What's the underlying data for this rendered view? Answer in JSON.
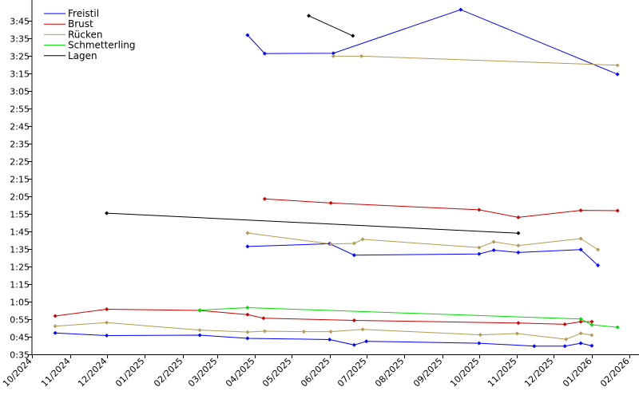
{
  "chart_data": {
    "type": "line",
    "title": "",
    "xlabel": "",
    "ylabel": "",
    "x_type": "date",
    "xlim": [
      "2024-10-01",
      "2026-02-02"
    ],
    "ylim_seconds": [
      35,
      235
    ],
    "x_ticks": [
      {
        "date": "2024-10-01",
        "label": "10/2024"
      },
      {
        "date": "2024-11-01",
        "label": "11/2024"
      },
      {
        "date": "2024-12-01",
        "label": "12/2024"
      },
      {
        "date": "2025-01-01",
        "label": "01/2025"
      },
      {
        "date": "2025-02-01",
        "label": "02/2025"
      },
      {
        "date": "2025-03-01",
        "label": "03/2025"
      },
      {
        "date": "2025-04-01",
        "label": "04/2025"
      },
      {
        "date": "2025-05-01",
        "label": "05/2025"
      },
      {
        "date": "2025-06-01",
        "label": "06/2025"
      },
      {
        "date": "2025-07-01",
        "label": "07/2025"
      },
      {
        "date": "2025-08-01",
        "label": "08/2025"
      },
      {
        "date": "2025-09-01",
        "label": "09/2025"
      },
      {
        "date": "2025-10-01",
        "label": "10/2025"
      },
      {
        "date": "2025-11-01",
        "label": "11/2025"
      },
      {
        "date": "2025-12-01",
        "label": "12/2025"
      },
      {
        "date": "2026-01-01",
        "label": "01/2026"
      },
      {
        "date": "2026-02-01",
        "label": "02/2026"
      }
    ],
    "y_ticks": [
      {
        "seconds": 35,
        "label": "0:35"
      },
      {
        "seconds": 45,
        "label": "0:45"
      },
      {
        "seconds": 55,
        "label": "0:55"
      },
      {
        "seconds": 65,
        "label": "1:05"
      },
      {
        "seconds": 75,
        "label": "1:15"
      },
      {
        "seconds": 85,
        "label": "1:25"
      },
      {
        "seconds": 95,
        "label": "1:35"
      },
      {
        "seconds": 105,
        "label": "1:45"
      },
      {
        "seconds": 115,
        "label": "1:55"
      },
      {
        "seconds": 125,
        "label": "2:05"
      },
      {
        "seconds": 135,
        "label": "2:15"
      },
      {
        "seconds": 145,
        "label": "2:25"
      },
      {
        "seconds": 155,
        "label": "2:35"
      },
      {
        "seconds": 165,
        "label": "2:45"
      },
      {
        "seconds": 175,
        "label": "2:55"
      },
      {
        "seconds": 185,
        "label": "3:05"
      },
      {
        "seconds": 195,
        "label": "3:15"
      },
      {
        "seconds": 205,
        "label": "3:25"
      },
      {
        "seconds": 215,
        "label": "3:35"
      },
      {
        "seconds": 225,
        "label": "3:45"
      }
    ],
    "grid": false,
    "legend_position": "top-left",
    "series": [
      {
        "name": "Freistil",
        "color": "#0000ff",
        "lines": [
          [
            [
              "2024-10-20",
              47.2
            ],
            [
              "2024-12-01",
              45.7
            ],
            [
              "2025-02-15",
              45.9
            ],
            [
              "2025-03-26",
              44.1
            ],
            [
              "2025-06-01",
              43.4
            ],
            [
              "2025-06-21",
              40.3
            ],
            [
              "2025-07-01",
              42.4
            ],
            [
              "2025-10-01",
              41.3
            ],
            [
              "2025-11-15",
              39.7
            ],
            [
              "2025-12-10",
              39.7
            ],
            [
              "2025-12-23",
              41.3
            ],
            [
              "2026-01-01",
              39.9
            ]
          ],
          [
            [
              "2025-03-26",
              96.4
            ],
            [
              "2025-06-01",
              98.0
            ],
            [
              "2025-06-21",
              91.5
            ],
            [
              "2025-10-01",
              92.2
            ],
            [
              "2025-10-13",
              94.3
            ],
            [
              "2025-11-02",
              93.0
            ],
            [
              "2025-12-23",
              94.7
            ],
            [
              "2026-01-06",
              85.7
            ]
          ],
          [
            [
              "2025-03-26",
              216.8
            ],
            [
              "2025-04-09",
              206.3
            ],
            [
              "2025-06-04",
              206.5
            ],
            [
              "2025-09-16",
              231.3
            ],
            [
              "2026-01-22",
              194.5
            ]
          ]
        ]
      },
      {
        "name": "Brust",
        "color": "#cc0000",
        "lines": [
          [
            [
              "2024-10-20",
              56.8
            ],
            [
              "2024-12-01",
              60.7
            ],
            [
              "2025-02-15",
              60.0
            ],
            [
              "2025-03-26",
              57.6
            ],
            [
              "2025-04-08",
              55.6
            ],
            [
              "2025-06-21",
              54.3
            ],
            [
              "2025-11-02",
              52.8
            ],
            [
              "2025-12-10",
              52.1
            ],
            [
              "2025-12-23",
              53.6
            ],
            [
              "2026-01-01",
              53.6
            ]
          ],
          [
            [
              "2025-04-09",
              123.5
            ],
            [
              "2025-06-02",
              121.2
            ],
            [
              "2025-10-01",
              117.3
            ],
            [
              "2025-11-02",
              113.0
            ],
            [
              "2025-12-23",
              117.0
            ],
            [
              "2026-01-22",
              116.8
            ]
          ]
        ]
      },
      {
        "name": "Rücken",
        "color": "#b49b50",
        "lines": [
          [
            [
              "2024-10-20",
              51.0
            ],
            [
              "2024-12-01",
              53.1
            ],
            [
              "2025-02-15",
              48.8
            ],
            [
              "2025-03-26",
              47.7
            ],
            [
              "2025-04-09",
              48.2
            ],
            [
              "2025-05-11",
              47.9
            ],
            [
              "2025-06-02",
              47.9
            ],
            [
              "2025-06-28",
              49.2
            ],
            [
              "2025-10-02",
              46.1
            ],
            [
              "2025-11-01",
              46.8
            ],
            [
              "2025-12-11",
              43.6
            ],
            [
              "2025-12-23",
              46.9
            ],
            [
              "2026-01-01",
              45.9
            ]
          ],
          [
            [
              "2025-03-26",
              104.1
            ],
            [
              "2025-06-02",
              97.8
            ],
            [
              "2025-06-21",
              98.2
            ],
            [
              "2025-06-28",
              100.5
            ],
            [
              "2025-10-01",
              95.8
            ],
            [
              "2025-10-13",
              99.1
            ],
            [
              "2025-11-02",
              96.9
            ],
            [
              "2025-12-23",
              100.9
            ],
            [
              "2026-01-06",
              94.6
            ]
          ],
          [
            [
              "2025-06-04",
              204.8
            ],
            [
              "2025-06-27",
              204.8
            ],
            [
              "2026-01-22",
              199.7
            ]
          ]
        ]
      },
      {
        "name": "Schmetterling",
        "color": "#00dd00",
        "lines": [
          [
            [
              "2025-02-15",
              60.2
            ],
            [
              "2025-03-26",
              61.6
            ],
            [
              "2025-12-23",
              55.1
            ],
            [
              "2026-01-01",
              51.8
            ],
            [
              "2026-01-22",
              50.4
            ]
          ]
        ]
      },
      {
        "name": "Lagen",
        "color": "#000000",
        "lines": [
          [
            [
              "2024-12-01",
              115.4
            ],
            [
              "2025-11-02",
              104.0
            ]
          ],
          [
            [
              "2025-05-15",
              227.8
            ],
            [
              "2025-06-20",
              216.4
            ]
          ]
        ]
      }
    ]
  }
}
